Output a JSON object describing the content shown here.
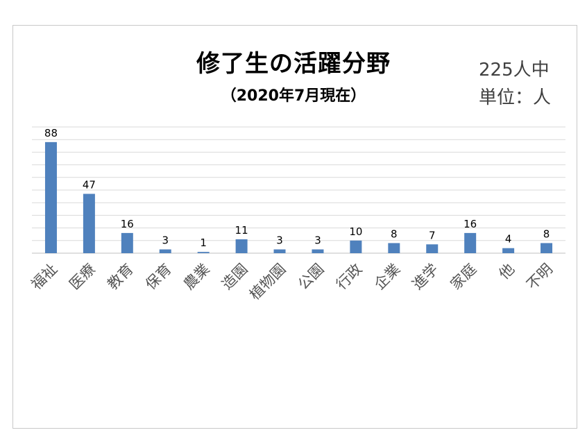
{
  "chart_data": {
    "type": "bar",
    "title": "修了生の活躍分野",
    "subtitle": "（2020年7月現在）",
    "notes": [
      "225人中",
      "単位：人"
    ],
    "categories": [
      "福祉",
      "医療",
      "教育",
      "保育",
      "農業",
      "造園",
      "植物園",
      "公園",
      "行政",
      "企業",
      "進学",
      "家庭",
      "他",
      "不明"
    ],
    "values": [
      88,
      47,
      16,
      3,
      1,
      11,
      3,
      3,
      10,
      8,
      7,
      16,
      4,
      8
    ],
    "ylim": [
      0,
      100
    ],
    "grid": true,
    "legend": "none",
    "colors": {
      "bar": "#4f81bd"
    }
  }
}
